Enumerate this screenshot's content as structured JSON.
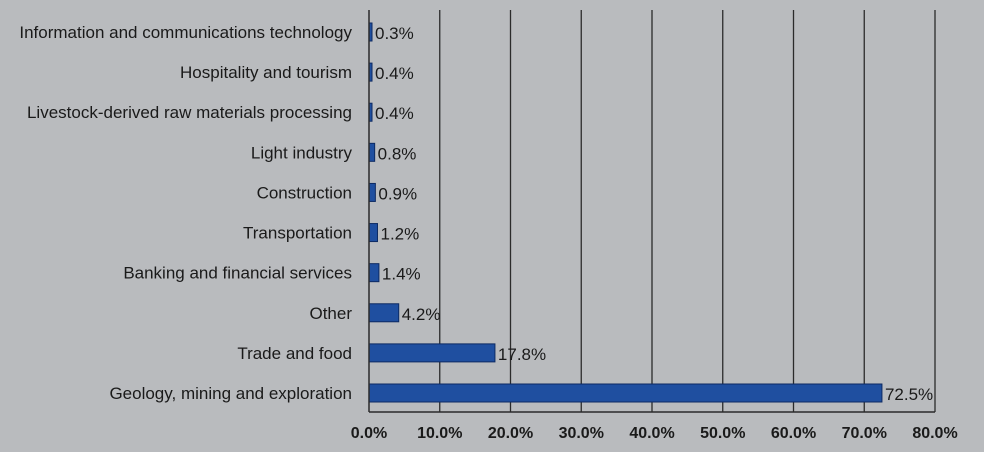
{
  "chart_data": {
    "type": "bar",
    "orientation": "horizontal",
    "categories": [
      "Information and communications technology",
      "Hospitality and tourism",
      "Livestock-derived raw materials processing",
      "Light industry",
      "Construction",
      "Transportation",
      "Banking and financial services",
      "Other",
      "Trade and food",
      "Geology, mining and exploration"
    ],
    "values": [
      0.3,
      0.4,
      0.4,
      0.8,
      0.9,
      1.2,
      1.4,
      4.2,
      17.8,
      72.5
    ],
    "data_labels": [
      "0.3%",
      "0.4%",
      "0.4%",
      "0.8%",
      "0.9%",
      "1.2%",
      "1.4%",
      "4.2%",
      "17.8%",
      "72.5%"
    ],
    "xlim": [
      0,
      80
    ],
    "xticks": [
      0,
      10,
      20,
      30,
      40,
      50,
      60,
      70,
      80
    ],
    "xtick_labels": [
      "0.0%",
      "10.0%",
      "20.0%",
      "30.0%",
      "40.0%",
      "50.0%",
      "60.0%",
      "70.0%",
      "80.0%"
    ],
    "grid": "vertical",
    "title": "",
    "xlabel": "",
    "ylabel": "",
    "colors": {
      "bar": "#1f4fa0",
      "bar_edge": "#0d2a63",
      "background": "#b9bbbe",
      "gridline": "#2b2b2b",
      "text": "#1a1a1a"
    }
  }
}
